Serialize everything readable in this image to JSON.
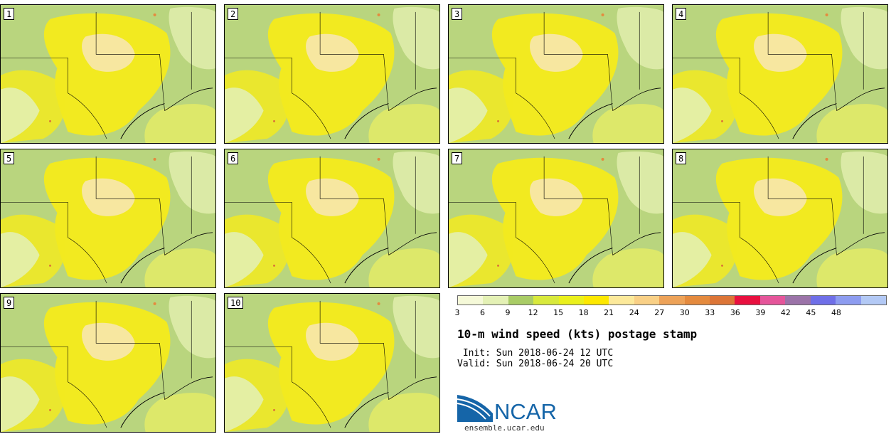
{
  "figure": {
    "title": "10-m wind speed (kts) postage stamp",
    "init_label": " Init:",
    "init_value": "Sun 2018-06-24 12 UTC",
    "valid_label": "Valid:",
    "valid_value": "Sun 2018-06-24 20 UTC",
    "site": "ensemble.ucar.edu",
    "logo_text": "NCAR"
  },
  "members": [
    "1",
    "2",
    "3",
    "4",
    "5",
    "6",
    "7",
    "8",
    "9",
    "10"
  ],
  "colorbar": {
    "ticks": [
      "3",
      "6",
      "9",
      "12",
      "15",
      "18",
      "21",
      "24",
      "27",
      "30",
      "33",
      "36",
      "39",
      "42",
      "45",
      "48"
    ],
    "colors": [
      "#f5f9d8",
      "#e4f1b5",
      "#a9cc66",
      "#d8e93c",
      "#eaf01c",
      "#fde800",
      "#fce99a",
      "#f9d086",
      "#eda258",
      "#e48a3e",
      "#dc7537",
      "#e8103f",
      "#e5559a",
      "#9b73a8",
      "#6f6fe8",
      "#8d9cf0",
      "#b3c9f5"
    ],
    "units": "kts"
  },
  "colors": {
    "land_green": "#b9d57e",
    "yellow": "#f2ea20",
    "pale_yellow": "#f7e7a0",
    "light_green": "#e3efb0"
  }
}
